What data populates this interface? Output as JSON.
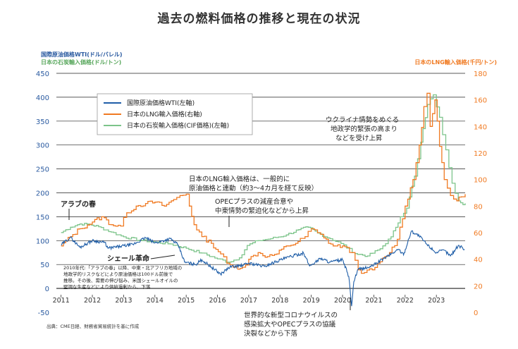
{
  "title": "過去の燃料価格の推移と現在の状況",
  "left_axis_label_1": "国際原油価格WTI(ドル/バレル)",
  "left_axis_label_2": "日本の石炭輸入価格(ドル/トン)",
  "right_axis_label": "日本のLNG輸入価格(千円/トン)",
  "source": "出典：CME日経、財務省貿易統計を基に作成",
  "colors": {
    "wti": "#1f5ea8",
    "lng": "#f07a22",
    "coal": "#7cc48a",
    "left_axis_text": "#2a5aa0",
    "coal_axis_text": "#5aa85e",
    "right_axis_text": "#f07a22",
    "grid": "#222222"
  },
  "annotations": {
    "arab_spring": "アラブの春",
    "shale": "シェール革命",
    "shale_note_1": "2010年代:「アラブの春」以降、中東・北アフリカ地域の",
    "shale_note_2": "地政学的リスクなどにより原油価格は100ドル前後で",
    "shale_note_3": "推移。その後、需要の伸び悩み、米国シェールオイルの",
    "shale_note_4": "堅調な生産などにより供給過剰から、下落",
    "lng_note_1": "日本のLNG輸入価格は、一般的に",
    "lng_note_2": "原油価格と連動（約3～4カ月を経て反映）",
    "opec_1": "OPECプラスの減産合意や",
    "opec_2": "中東情勢の緊迫化などから上昇",
    "ukraine_1": "ウクライナ情勢をめぐる",
    "ukraine_2": "地政学的緊張の高まり",
    "ukraine_3": "などを受け上昇",
    "covid_1": "世界的な新型コロナウイルスの",
    "covid_2": "感染拡大やOPECプラスの協議",
    "covid_3": "決裂などから下落"
  },
  "chart_data": {
    "type": "line",
    "x_range": [
      2010.85,
      2023.92
    ],
    "x_ticks": [
      2011,
      2012,
      2013,
      2014,
      2015,
      2016,
      2017,
      2018,
      2019,
      2020,
      2021,
      2022,
      2023
    ],
    "y_left": {
      "lim": [
        -50,
        450
      ],
      "ticks": [
        -50,
        0,
        50,
        100,
        150,
        200,
        250,
        300,
        350,
        400,
        450
      ]
    },
    "y_right": {
      "lim": [
        0,
        180
      ],
      "ticks": [
        0,
        20,
        40,
        60,
        80,
        100,
        120,
        140,
        160,
        180
      ]
    },
    "grid": true,
    "legend_position": "top-left",
    "series": [
      {
        "key": "wti",
        "name": "国際原油価格WTI(左軸)",
        "axis": "left",
        "points": [
          [
            2011.0,
            91
          ],
          [
            2011.3,
            107
          ],
          [
            2011.6,
            86
          ],
          [
            2012.0,
            100
          ],
          [
            2012.4,
            96
          ],
          [
            2012.5,
            84
          ],
          [
            2012.9,
            88
          ],
          [
            2013.3,
            92
          ],
          [
            2013.7,
            106
          ],
          [
            2014.0,
            95
          ],
          [
            2014.5,
            104
          ],
          [
            2014.75,
            90
          ],
          [
            2014.95,
            55
          ],
          [
            2015.3,
            50
          ],
          [
            2015.5,
            60
          ],
          [
            2015.8,
            45
          ],
          [
            2016.1,
            30
          ],
          [
            2016.4,
            45
          ],
          [
            2016.8,
            48
          ],
          [
            2017.0,
            53
          ],
          [
            2017.5,
            46
          ],
          [
            2017.9,
            57
          ],
          [
            2018.3,
            66
          ],
          [
            2018.75,
            74
          ],
          [
            2018.95,
            47
          ],
          [
            2019.3,
            63
          ],
          [
            2019.6,
            55
          ],
          [
            2020.0,
            60
          ],
          [
            2020.2,
            25
          ],
          [
            2020.29,
            -37
          ],
          [
            2020.36,
            14
          ],
          [
            2020.5,
            40
          ],
          [
            2020.9,
            45
          ],
          [
            2021.3,
            62
          ],
          [
            2021.8,
            82
          ],
          [
            2021.95,
            70
          ],
          [
            2022.2,
            120
          ],
          [
            2022.45,
            110
          ],
          [
            2022.7,
            92
          ],
          [
            2023.0,
            75
          ],
          [
            2023.25,
            80
          ],
          [
            2023.45,
            68
          ],
          [
            2023.7,
            90
          ],
          [
            2023.9,
            82
          ]
        ]
      },
      {
        "key": "lng",
        "name": "日本のLNG輸入価格(右軸)",
        "axis": "right",
        "points": [
          [
            2011.0,
            50
          ],
          [
            2011.3,
            57
          ],
          [
            2011.6,
            63
          ],
          [
            2012.0,
            68
          ],
          [
            2012.3,
            72
          ],
          [
            2012.6,
            66
          ],
          [
            2012.9,
            65
          ],
          [
            2013.1,
            75
          ],
          [
            2013.4,
            80
          ],
          [
            2013.7,
            82
          ],
          [
            2014.0,
            83
          ],
          [
            2014.3,
            80
          ],
          [
            2014.6,
            85
          ],
          [
            2014.8,
            88
          ],
          [
            2015.0,
            89
          ],
          [
            2015.1,
            80
          ],
          [
            2015.25,
            66
          ],
          [
            2015.5,
            57
          ],
          [
            2015.8,
            52
          ],
          [
            2016.1,
            44
          ],
          [
            2016.3,
            37
          ],
          [
            2016.5,
            34
          ],
          [
            2016.8,
            34
          ],
          [
            2017.0,
            40
          ],
          [
            2017.3,
            45
          ],
          [
            2017.6,
            42
          ],
          [
            2017.9,
            44
          ],
          [
            2018.2,
            50
          ],
          [
            2018.5,
            52
          ],
          [
            2018.8,
            57
          ],
          [
            2019.0,
            63
          ],
          [
            2019.2,
            60
          ],
          [
            2019.4,
            56
          ],
          [
            2019.7,
            50
          ],
          [
            2020.0,
            50
          ],
          [
            2020.3,
            45
          ],
          [
            2020.5,
            32
          ],
          [
            2020.7,
            30
          ],
          [
            2020.95,
            32
          ],
          [
            2021.2,
            38
          ],
          [
            2021.5,
            45
          ],
          [
            2021.75,
            55
          ],
          [
            2022.0,
            80
          ],
          [
            2022.25,
            100
          ],
          [
            2022.45,
            126
          ],
          [
            2022.6,
            155
          ],
          [
            2022.7,
            165
          ],
          [
            2022.8,
            140
          ],
          [
            2022.95,
            160
          ],
          [
            2023.1,
            125
          ],
          [
            2023.25,
            100
          ],
          [
            2023.45,
            88
          ],
          [
            2023.65,
            84
          ],
          [
            2023.8,
            87
          ],
          [
            2023.92,
            89
          ]
        ]
      },
      {
        "key": "coal",
        "name": "日本の石炭輸入価格(CIF価格)(左軸)",
        "axis": "left",
        "points": [
          [
            2011.0,
            117
          ],
          [
            2011.3,
            128
          ],
          [
            2011.6,
            135
          ],
          [
            2011.9,
            134
          ],
          [
            2012.2,
            129
          ],
          [
            2012.6,
            118
          ],
          [
            2013.0,
            108
          ],
          [
            2013.5,
            101
          ],
          [
            2014.0,
            97
          ],
          [
            2014.5,
            93
          ],
          [
            2015.0,
            84
          ],
          [
            2015.5,
            74
          ],
          [
            2016.0,
            62
          ],
          [
            2016.35,
            55
          ],
          [
            2016.7,
            64
          ],
          [
            2016.95,
            90
          ],
          [
            2017.3,
            100
          ],
          [
            2017.7,
            104
          ],
          [
            2018.2,
            112
          ],
          [
            2018.6,
            123
          ],
          [
            2018.9,
            128
          ],
          [
            2019.2,
            116
          ],
          [
            2019.6,
            104
          ],
          [
            2019.95,
            94
          ],
          [
            2020.4,
            73
          ],
          [
            2020.8,
            68
          ],
          [
            2021.2,
            83
          ],
          [
            2021.55,
            108
          ],
          [
            2021.85,
            150
          ],
          [
            2022.05,
            168
          ],
          [
            2022.3,
            235
          ],
          [
            2022.5,
            306
          ],
          [
            2022.72,
            385
          ],
          [
            2022.9,
            405
          ],
          [
            2023.1,
            358
          ],
          [
            2023.3,
            290
          ],
          [
            2023.5,
            220
          ],
          [
            2023.7,
            183
          ],
          [
            2023.85,
            175
          ],
          [
            2023.92,
            178
          ]
        ]
      }
    ]
  }
}
